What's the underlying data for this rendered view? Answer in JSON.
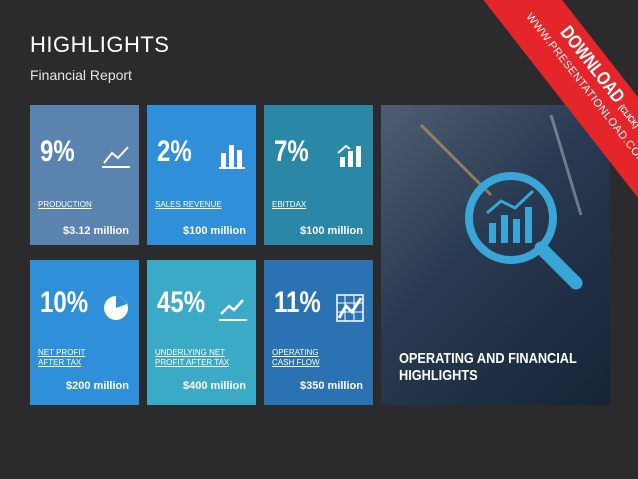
{
  "header": {
    "title": "HIGHLIGHTS",
    "subtitle": "Financial Report"
  },
  "tiles": [
    {
      "percent": "9%",
      "label": [
        "PRODUCTION"
      ],
      "value": "$3.12 million"
    },
    {
      "percent": "2%",
      "label": [
        "SALES REVENUE"
      ],
      "value": "$100 million"
    },
    {
      "percent": "7%",
      "label": [
        "EBITDAX"
      ],
      "value": "$100 million"
    },
    {
      "percent": "10%",
      "label": [
        "NET PROFIT",
        "AFTER TAX"
      ],
      "value": "$200 million"
    },
    {
      "percent": "45%",
      "label": [
        "UNDERLYING NET",
        "PROFIT AFTER TAX"
      ],
      "value": "$400 million"
    },
    {
      "percent": "11%",
      "label": [
        "OPERATING",
        "CASH FLOW"
      ],
      "value": "$350 million"
    }
  ],
  "panel": {
    "caption": [
      "OPERATING AND FINANCIAL",
      "HIGHLIGHTS"
    ]
  },
  "ribbon": {
    "download": "DOWNLOAD",
    "click": "(CLICK)",
    "url": "WWW.PRESENTATIONLOAD.COM"
  }
}
